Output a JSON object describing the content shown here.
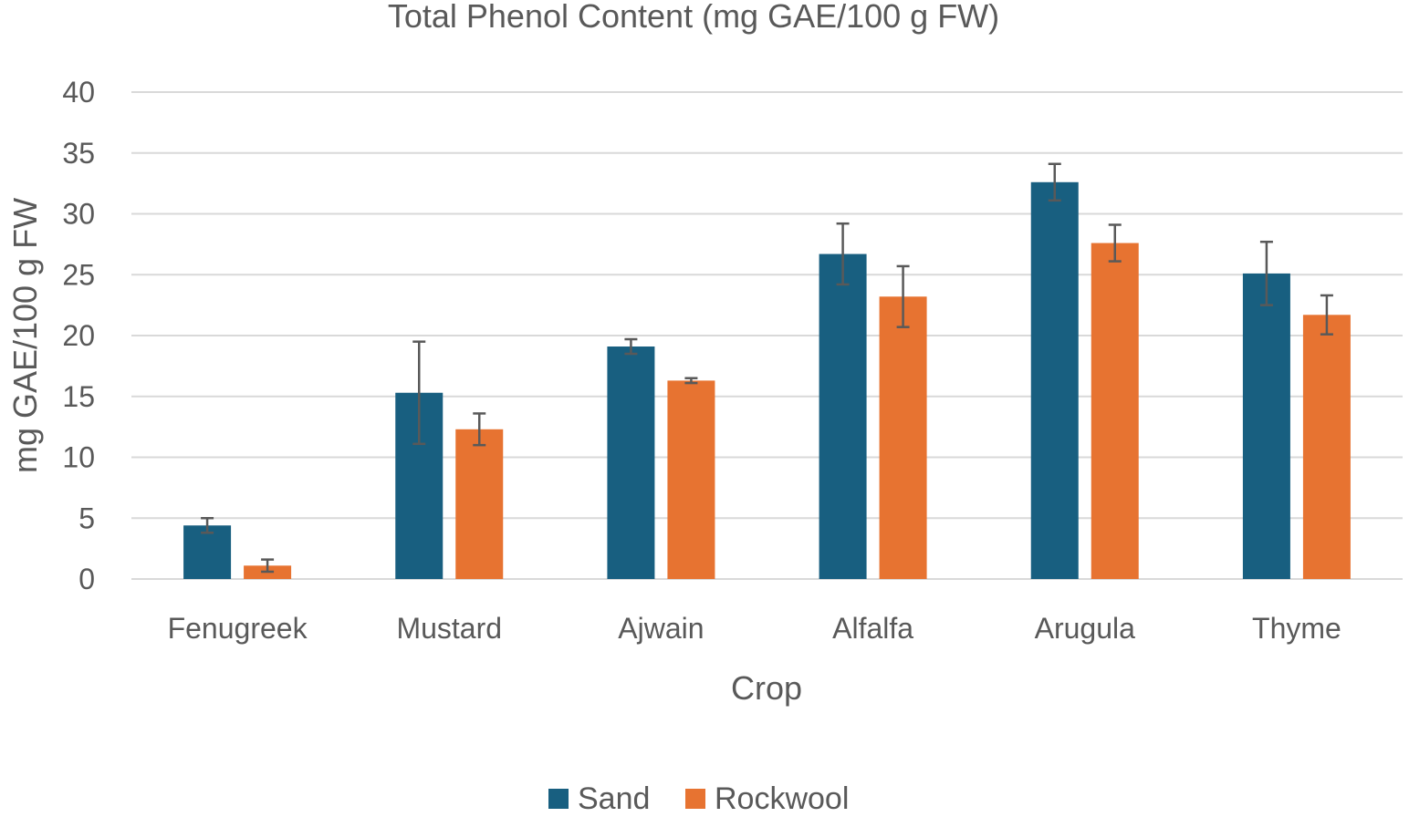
{
  "chart_data": {
    "type": "bar",
    "title": "Total Phenol Content (mg GAE/100 g FW)",
    "xlabel": "Crop",
    "ylabel": "mg GAE/100 g FW",
    "ylim": [
      0,
      40
    ],
    "yticks": [
      0,
      5,
      10,
      15,
      20,
      25,
      30,
      35,
      40
    ],
    "grid": true,
    "legend_position": "bottom",
    "categories": [
      "Fenugreek",
      "Mustard",
      "Ajwain",
      "Alfalfa",
      "Arugula",
      "Thyme"
    ],
    "series": [
      {
        "name": "Sand",
        "color": "#185f80",
        "values": [
          4.4,
          15.3,
          19.1,
          26.7,
          32.6,
          25.1
        ],
        "errors": [
          0.6,
          4.2,
          0.6,
          2.5,
          1.5,
          2.6
        ]
      },
      {
        "name": "Rockwool",
        "color": "#e77331",
        "values": [
          1.1,
          12.3,
          16.3,
          23.2,
          27.6,
          21.7
        ],
        "errors": [
          0.5,
          1.3,
          0.2,
          2.5,
          1.5,
          1.6
        ]
      }
    ]
  }
}
